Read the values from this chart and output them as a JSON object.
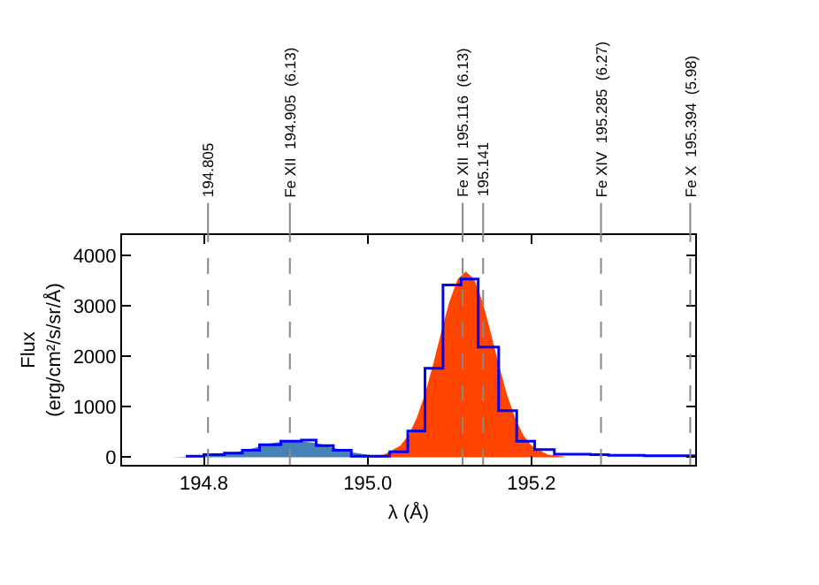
{
  "chart_data": {
    "type": "step",
    "xlabel": "λ (Å)",
    "ylabel": "Flux\n(erg/cm²/s/sr/Å)",
    "xlim": [
      194.7,
      195.4
    ],
    "ylim": [
      -150,
      4400
    ],
    "xticks": [
      194.8,
      {
        "value": 195.0,
        "label": "195.0"
      },
      195.2
    ],
    "yticks": [
      0,
      1000,
      2000,
      3000,
      4000
    ],
    "grid": false,
    "legend": false,
    "series": [
      {
        "type": "area",
        "color": "#4682b4",
        "x": [
          194.76,
          194.78,
          194.8,
          194.82,
          194.84,
          194.86,
          194.88,
          194.9,
          194.92,
          194.94,
          194.96,
          194.98,
          195.0,
          195.02
        ],
        "values": [
          0,
          10,
          20,
          50,
          100,
          180,
          270,
          320,
          320,
          270,
          180,
          100,
          50,
          20
        ]
      },
      {
        "type": "area",
        "color": "#ff4500",
        "x": [
          195.0,
          195.02,
          195.04,
          195.05,
          195.06,
          195.07,
          195.08,
          195.09,
          195.1,
          195.11,
          195.12,
          195.13,
          195.14,
          195.15,
          195.16,
          195.17,
          195.18,
          195.19,
          195.2,
          195.22,
          195.24
        ],
        "values": [
          10,
          50,
          230,
          440,
          780,
          1250,
          1840,
          2490,
          3090,
          3530,
          3680,
          3530,
          3090,
          2490,
          1840,
          1250,
          780,
          440,
          230,
          50,
          10
        ]
      },
      {
        "color": "#0000ff",
        "x": [
          194.778,
          194.8,
          194.825,
          194.847,
          194.868,
          194.894,
          194.919,
          194.937,
          194.958,
          194.98,
          195.009,
          195.027,
          195.049,
          195.07,
          195.092,
          195.114,
          195.135,
          195.16,
          195.182,
          195.204,
          195.228,
          195.25,
          195.272,
          195.294,
          195.316,
          195.338,
          195.36,
          195.382,
          195.4
        ],
        "values": [
          20,
          50,
          80,
          140,
          250,
          320,
          340,
          230,
          140,
          20,
          20,
          110,
          520,
          1760,
          3410,
          3530,
          2180,
          920,
          320,
          150,
          60,
          60,
          50,
          40,
          40,
          30,
          30,
          30,
          30
        ]
      }
    ],
    "ref_lines": [
      {
        "axis": "x",
        "value": 194.805,
        "label": "194.805",
        "line_style": "dashed",
        "color": "#888888"
      },
      {
        "axis": "x",
        "value": 194.905,
        "label": "Fe XII  194.905  (6.13)",
        "line_style": "dashed",
        "color": "#888888"
      },
      {
        "axis": "x",
        "value": 195.116,
        "label": "Fe XII  195.116  (6.13)",
        "line_style": "dashed",
        "color": "#888888"
      },
      {
        "axis": "x",
        "value": 195.141,
        "label": "195.141",
        "line_style": "dashed",
        "color": "#888888"
      },
      {
        "axis": "x",
        "value": 195.285,
        "label": "Fe XIV  195.285  (6.27)",
        "line_style": "dashed",
        "color": "#888888"
      },
      {
        "axis": "x",
        "value": 195.394,
        "label": "Fe X  195.394  (5.98)",
        "line_style": "dashed",
        "color": "#888888"
      }
    ]
  }
}
